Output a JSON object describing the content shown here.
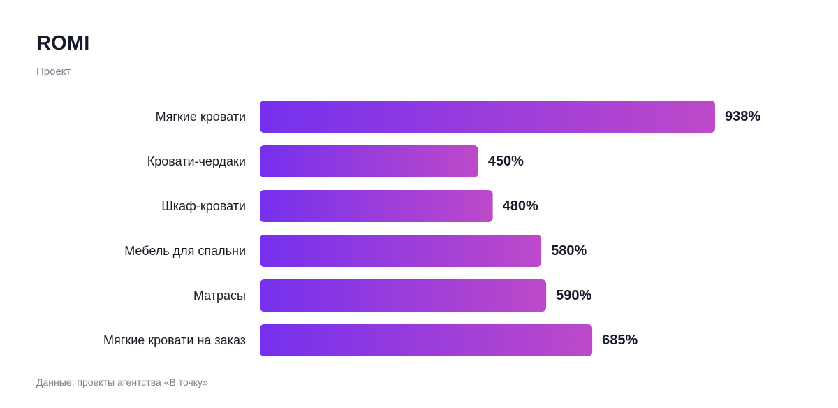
{
  "header": {
    "title": "ROMI",
    "subtitle": "Проект"
  },
  "footer": {
    "source": "Данные: проекты агентства «В точку»"
  },
  "colors": {
    "bar_start": "#7530ee",
    "bar_end": "#be49c9"
  },
  "chart_data": {
    "type": "bar",
    "orientation": "horizontal",
    "title": "ROMI",
    "subtitle": "Проект",
    "categories": [
      "Мягкие кровати",
      "Кровати-чердаки",
      "Шкаф-кровати",
      "Мебель для спальни",
      "Матрасы",
      "Мягкие кровати на заказ"
    ],
    "values": [
      938,
      450,
      480,
      580,
      590,
      685
    ],
    "value_labels": [
      "938%",
      "450%",
      "480%",
      "580%",
      "590%",
      "685%"
    ],
    "unit": "%",
    "xlim": [
      0,
      938
    ],
    "grid": false,
    "legend": "none"
  }
}
